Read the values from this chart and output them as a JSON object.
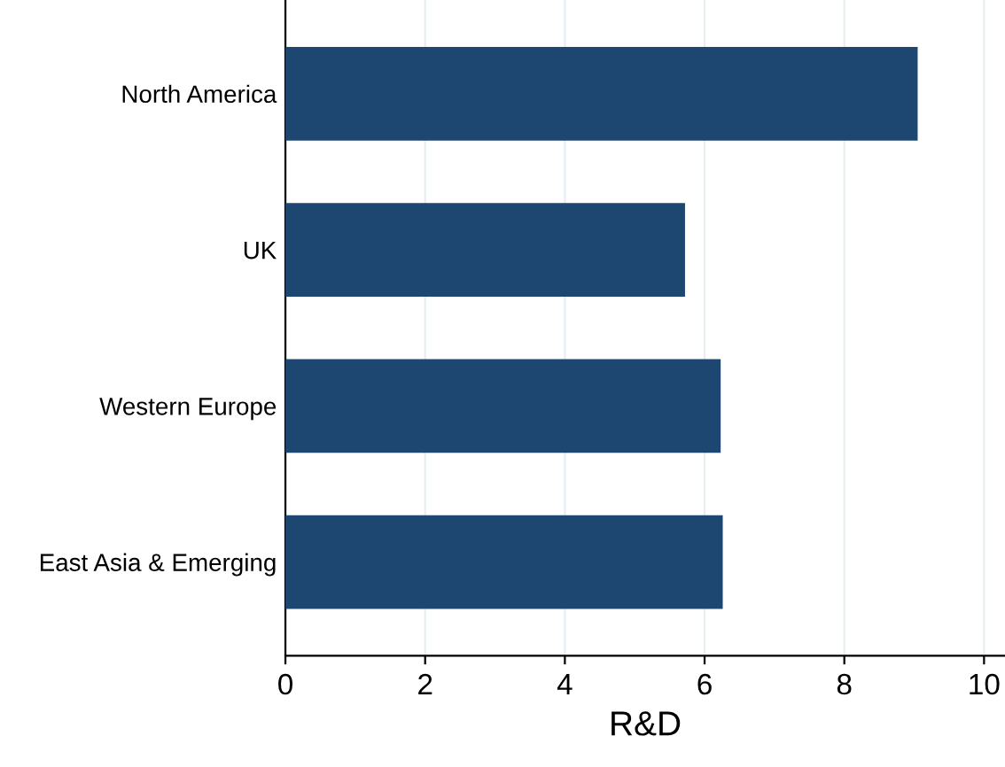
{
  "chart_data": {
    "type": "bar",
    "orientation": "horizontal",
    "xlabel": "R&D",
    "categories": [
      "North America",
      "UK",
      "Western Europe",
      "East Asia & Emerging"
    ],
    "values": [
      9.05,
      5.72,
      6.23,
      6.26
    ],
    "color": "#1d4770",
    "xlim": [
      0,
      10.3
    ],
    "xticks": [
      0,
      2,
      4,
      6,
      8,
      10
    ],
    "grid": "x"
  }
}
